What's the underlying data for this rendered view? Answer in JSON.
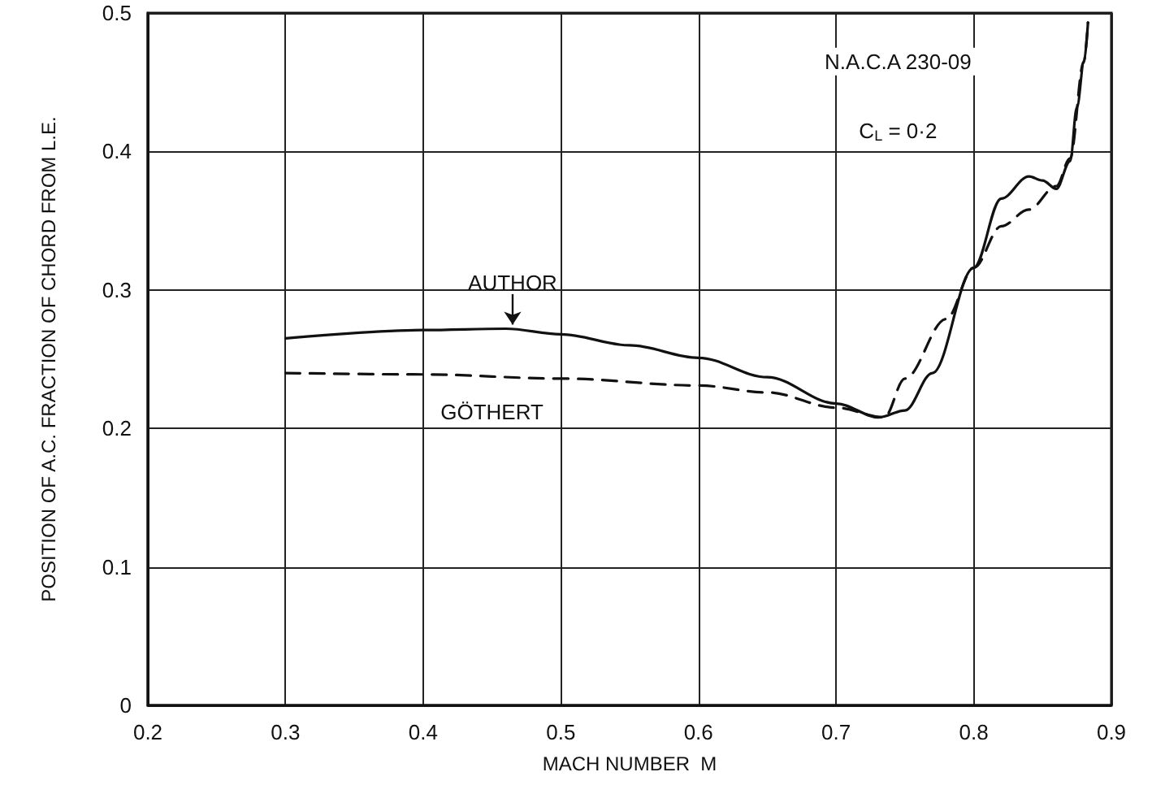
{
  "chart_data": {
    "type": "line",
    "xlabel": "MACH NUMBER  M",
    "ylabel": "POSITION OF A.C. FRACTION OF CHORD FROM L.E.",
    "annotations": [
      "N.A.C.A 230-09",
      "C$_{L}$ = 0·2"
    ],
    "series": [
      {
        "name": "AUTHOR",
        "color": "#111111",
        "line_style": "solid",
        "x": [
          0.3,
          0.4,
          0.46,
          0.5,
          0.55,
          0.6,
          0.65,
          0.7,
          0.731,
          0.75,
          0.77,
          0.8,
          0.82,
          0.84,
          0.85,
          0.86,
          0.87,
          0.875,
          0.88,
          0.883
        ],
        "values": [
          0.265,
          0.271,
          0.272,
          0.268,
          0.26,
          0.251,
          0.237,
          0.218,
          0.208,
          0.213,
          0.24,
          0.316,
          0.366,
          0.382,
          0.379,
          0.373,
          0.393,
          0.432,
          0.464,
          0.493
        ]
      },
      {
        "name": "GÖTHERT",
        "color": "#111111",
        "line_style": "dashed",
        "x": [
          0.3,
          0.4,
          0.5,
          0.6,
          0.65,
          0.7,
          0.735,
          0.75,
          0.78,
          0.8,
          0.82,
          0.84,
          0.86,
          0.87,
          0.88,
          0.883
        ],
        "values": [
          0.24,
          0.239,
          0.236,
          0.231,
          0.226,
          0.215,
          0.208,
          0.236,
          0.279,
          0.316,
          0.346,
          0.358,
          0.375,
          0.395,
          0.465,
          0.493
        ]
      }
    ],
    "xlim": [
      0.2,
      0.9
    ],
    "xticks": [
      0.2,
      0.3,
      0.4,
      0.5,
      0.6,
      0.7,
      0.8,
      0.9
    ],
    "ylim": [
      0,
      0.5
    ],
    "yticks": [
      0,
      0.1,
      0.2,
      0.3,
      0.4,
      0.5
    ],
    "grid": true,
    "legend": false,
    "marker": "none"
  }
}
